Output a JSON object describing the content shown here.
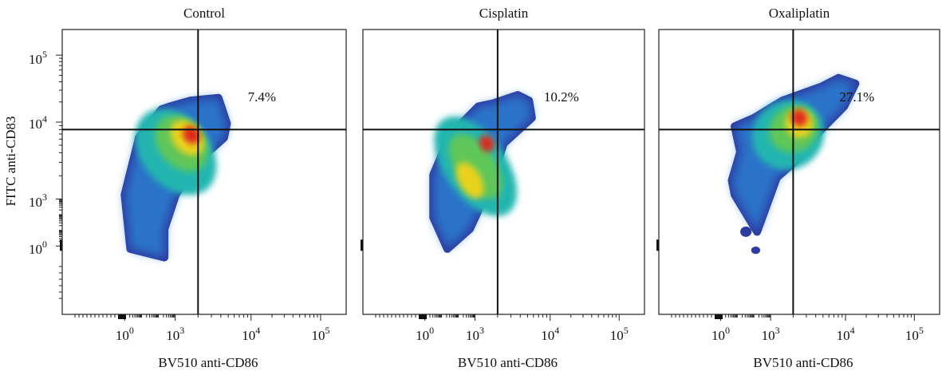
{
  "figure": {
    "y_axis_label": "FITC anti-CD83",
    "x_axis_label": "BV510 anti-CD86",
    "y_tick_labels": [
      "10^5",
      "10^4",
      "10^3",
      "10^0"
    ],
    "x_tick_labels": [
      "10^0",
      "10^3",
      "10^4",
      "10^5"
    ]
  },
  "panels": [
    {
      "title": "Control",
      "quadrant_percent": "7.4%"
    },
    {
      "title": "Cisplatin",
      "quadrant_percent": "10.2%"
    },
    {
      "title": "Oxaliplatin",
      "quadrant_percent": "27.1%"
    }
  ],
  "chart_data": [
    {
      "type": "scatter",
      "title": "Control",
      "xlabel": "BV510 anti-CD86",
      "ylabel": "FITC anti-CD83",
      "x_scale": "biexponential",
      "y_scale": "biexponential",
      "x_ticks": [
        "10^0",
        "10^3",
        "10^4",
        "10^5"
      ],
      "y_ticks": [
        "10^0",
        "10^3",
        "10^4",
        "10^5"
      ],
      "quadrant_gate": {
        "x": 2000,
        "y": 8000
      },
      "annotations": [
        {
          "quadrant": "upper-right",
          "text": "7.4%"
        }
      ],
      "density_peak": {
        "x": 1500,
        "y": 6000
      },
      "legend": "none"
    },
    {
      "type": "scatter",
      "title": "Cisplatin",
      "xlabel": "BV510 anti-CD86",
      "ylabel": "",
      "x_scale": "biexponential",
      "y_scale": "biexponential",
      "x_ticks": [
        "10^0",
        "10^3",
        "10^4",
        "10^5"
      ],
      "quadrant_gate": {
        "x": 2000,
        "y": 8000
      },
      "annotations": [
        {
          "quadrant": "upper-right",
          "text": "10.2%"
        }
      ],
      "density_peak": {
        "x": 500,
        "y": 2000
      },
      "legend": "none"
    },
    {
      "type": "scatter",
      "title": "Oxaliplatin",
      "xlabel": "BV510 anti-CD86",
      "ylabel": "",
      "x_scale": "biexponential",
      "y_scale": "biexponential",
      "x_ticks": [
        "10^0",
        "10^3",
        "10^4",
        "10^5"
      ],
      "quadrant_gate": {
        "x": 2000,
        "y": 8000
      },
      "annotations": [
        {
          "quadrant": "upper-right",
          "text": "27.1%"
        }
      ],
      "density_peak": {
        "x": 2000,
        "y": 9000
      },
      "legend": "none"
    }
  ]
}
